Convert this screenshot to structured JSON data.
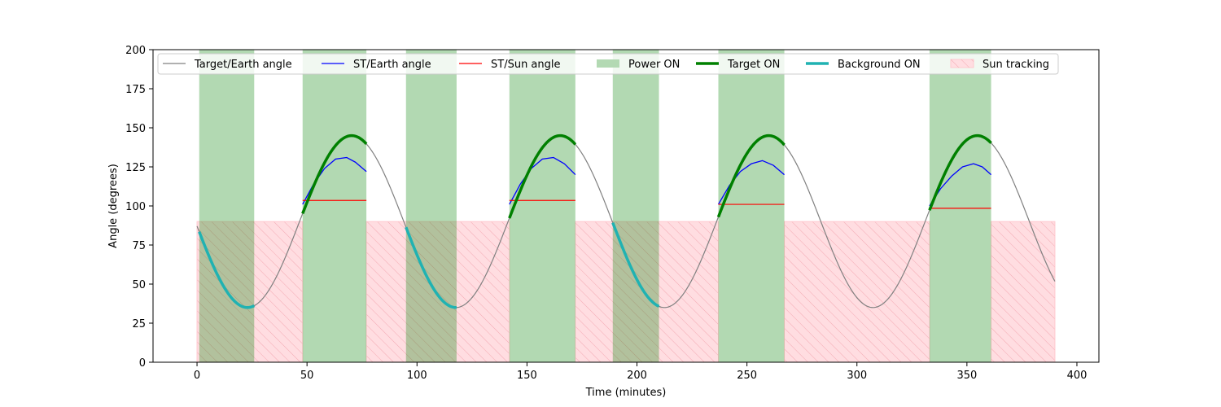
{
  "chart_data": {
    "type": "line",
    "xlabel": "Time (minutes)",
    "ylabel": "Angle (degrees)",
    "xlim": [
      -20,
      410
    ],
    "ylim": [
      0,
      200
    ],
    "xticks": [
      0,
      50,
      100,
      150,
      200,
      250,
      300,
      350,
      400
    ],
    "yticks": [
      0,
      25,
      50,
      75,
      100,
      125,
      150,
      175,
      200
    ],
    "grid": false,
    "legend_position": "top, single row",
    "legend": [
      {
        "key": "target_earth",
        "label": "Target/Earth angle",
        "kind": "line",
        "color": "#808080"
      },
      {
        "key": "st_earth",
        "label": "ST/Earth angle",
        "kind": "line",
        "color": "#0000ff"
      },
      {
        "key": "st_sun",
        "label": "ST/Sun angle",
        "kind": "line",
        "color": "#ff0000"
      },
      {
        "key": "power_on",
        "label": "Power ON",
        "kind": "patch",
        "color": "#b3d9b3"
      },
      {
        "key": "target_on",
        "label": "Target ON",
        "kind": "thickline",
        "color": "#008000"
      },
      {
        "key": "background_on",
        "label": "Background ON",
        "kind": "thickline",
        "color": "#20b2b2"
      },
      {
        "key": "sun_tracking",
        "label": "Sun tracking",
        "kind": "hatch",
        "color": "#ffdde1"
      }
    ],
    "target_earth_curve": {
      "model": "sinusoid",
      "center": 90,
      "amplitude": 55,
      "period_minutes": 94.8,
      "peak_time_minutes": 70.3,
      "x_start": 0,
      "x_end": 390
    },
    "power_on_intervals": [
      [
        1,
        26
      ],
      [
        48,
        77
      ],
      [
        95,
        118
      ],
      [
        142,
        172
      ],
      [
        189,
        210
      ],
      [
        237,
        267
      ],
      [
        333,
        361
      ]
    ],
    "sun_tracking_intervals": [
      [
        0,
        48
      ],
      [
        77,
        142
      ],
      [
        172,
        237
      ],
      [
        267,
        333
      ],
      [
        361,
        390
      ]
    ],
    "sun_tracking_level": 90,
    "target_on_intervals": [
      [
        48,
        77
      ],
      [
        142,
        172
      ],
      [
        237,
        267
      ],
      [
        333,
        361
      ]
    ],
    "background_on_intervals": [
      [
        1,
        26
      ],
      [
        95,
        118
      ],
      [
        189,
        210
      ]
    ],
    "st_earth_segments": [
      {
        "x": [
          48,
          53,
          58,
          63,
          68,
          72,
          77
        ],
        "y": [
          101,
          114,
          124,
          130,
          131,
          128,
          122
        ]
      },
      {
        "x": [
          142,
          147,
          152,
          157,
          162,
          167,
          172
        ],
        "y": [
          101,
          114,
          124,
          130,
          131,
          127,
          120
        ]
      },
      {
        "x": [
          237,
          242,
          247,
          252,
          257,
          262,
          267
        ],
        "y": [
          101,
          113,
          122,
          127,
          129,
          126,
          120
        ]
      },
      {
        "x": [
          333,
          338,
          343,
          348,
          353,
          357,
          361
        ],
        "y": [
          100,
          111,
          119,
          125,
          127,
          125,
          120
        ]
      }
    ],
    "st_sun_segments": [
      {
        "x": [
          48,
          77
        ],
        "y": [
          103.5,
          103.5
        ]
      },
      {
        "x": [
          142,
          172
        ],
        "y": [
          103.5,
          103.5
        ]
      },
      {
        "x": [
          237,
          267
        ],
        "y": [
          101,
          101
        ]
      },
      {
        "x": [
          333,
          361
        ],
        "y": [
          98.5,
          98.5
        ]
      }
    ]
  }
}
